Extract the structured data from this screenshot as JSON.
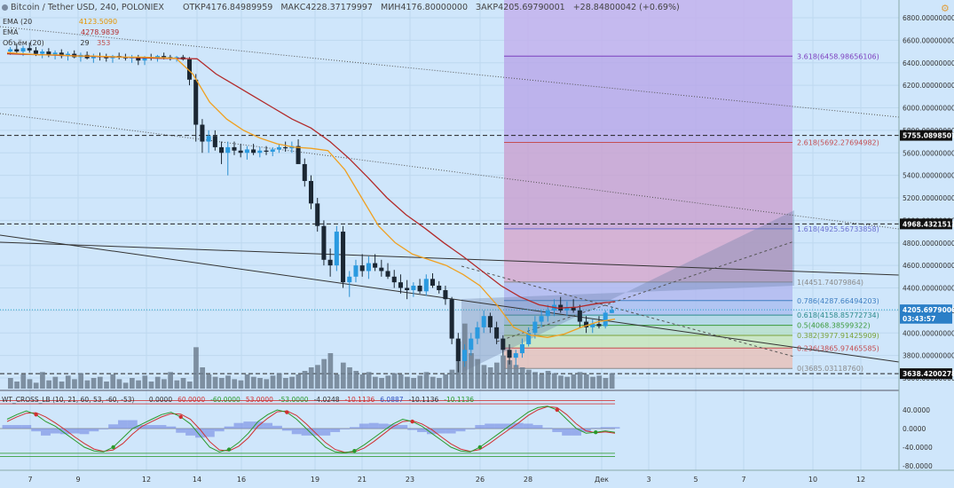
{
  "header": {
    "title": "Bitcoin / Tether USD, 240, POLONIEX",
    "open_label": "ОТКР",
    "open_value": "4176.84989959",
    "high_label": "МАКС",
    "high_value": "4228.37179997",
    "low_label": "МИН",
    "low_value": "4176.80000000",
    "close_label": "ЗАКР",
    "close_value": "4205.69790001",
    "change": "+28.84800042 (+0.69%)"
  },
  "legend": {
    "ema1_label": "EMA (20",
    "ema1_value": "4123.5090",
    "ema2_label": "EMA",
    "ema2_value": "4278.9839",
    "vol_label": "Объём (20)",
    "vol_v1": "29",
    "vol_v2": "353"
  },
  "fib_levels": [
    {
      "label": "3.618(6458.98656106)",
      "price": 6458.98656106,
      "color": "#7d3fbf"
    },
    {
      "label": "2.618(5692.27694982)",
      "price": 5692.27694982,
      "color": "#c44e52"
    },
    {
      "label": "1.618(4925.56733858)",
      "price": 4925.56733858,
      "color": "#6a6fd0"
    },
    {
      "label": "1(4451.74079864)",
      "price": 4451.74079864,
      "color": "#8a8a8a"
    },
    {
      "label": "0.786(4287.66494203)",
      "price": 4287.66494203,
      "color": "#3f7fc2"
    },
    {
      "label": "0.618(4158.85772734)",
      "price": 4158.85772734,
      "color": "#2e8b8b"
    },
    {
      "label": "0.5(4068.38599322)",
      "price": 4068.38599322,
      "color": "#3b9a3b"
    },
    {
      "label": "0.382(3977.91425909)",
      "price": 3977.91425909,
      "color": "#7aa23a"
    },
    {
      "label": "0.236(3865.97465585)",
      "price": 3865.97465585,
      "color": "#c44e52"
    },
    {
      "label": "0(3685.03118760)",
      "price": 3685.0311876,
      "color": "#8a8a8a"
    }
  ],
  "price_axis": {
    "ticks": [
      "6800.00000000",
      "6600.00000000",
      "6400.00000000",
      "6200.00000000",
      "6000.00000000",
      "5800.00000000",
      "5600.00000000",
      "5400.00000000",
      "5200.00000000",
      "5000.00000000",
      "4800.00000000",
      "4600.00000000",
      "4400.00000000",
      "4200.00000000",
      "4000.00000000",
      "3800.00000000",
      "3600.00000000"
    ],
    "markers": [
      {
        "label": "5755.08985078",
        "price": 5755.08985078
      },
      {
        "label": "4968.43215110",
        "price": 4968.4321511
      },
      {
        "label": "4205.69790001",
        "price": 4205.69790001
      },
      {
        "label": "03:43:57",
        "price": 4130
      },
      {
        "label": "3638.42002782",
        "price": 3638.42002782
      }
    ]
  },
  "indicator": {
    "title": "WT_CROSS_LB (10, 21, 60, 53, -60, -53)",
    "values": [
      {
        "text": "0.0000",
        "color": "#333333"
      },
      {
        "text": "60.0000",
        "color": "#d03030"
      },
      {
        "text": "-60.0000",
        "color": "#2a9a2a"
      },
      {
        "text": "53.0000",
        "color": "#d03030"
      },
      {
        "text": "-53.0000",
        "color": "#2a9a2a"
      },
      {
        "text": "-4.0248",
        "color": "#333333"
      },
      {
        "text": "-10.1136",
        "color": "#d03030"
      },
      {
        "text": "6.0887",
        "color": "#3050c0"
      },
      {
        "text": "-10.1136",
        "color": "#333333"
      },
      {
        "text": "-10.1136",
        "color": "#2a9a2a"
      }
    ],
    "ticks": [
      "40.0000",
      "0.0000",
      "-40.0000",
      "-80.0000"
    ]
  },
  "time_axis": {
    "ticks": [
      "7",
      "9",
      "12",
      "14",
      "16",
      "19",
      "21",
      "23",
      "26",
      "28",
      "Дек",
      "3",
      "5",
      "7",
      "10",
      "12"
    ]
  },
  "chart_data": {
    "type": "candlestick",
    "title": "Bitcoin / Tether USD, 240, POLONIEX",
    "ylim": [
      3600,
      6900
    ],
    "candles_ohlc": [
      [
        6500,
        6540,
        6470,
        6520
      ],
      [
        6520,
        6560,
        6480,
        6500
      ],
      [
        6500,
        6550,
        6460,
        6530
      ],
      [
        6530,
        6580,
        6490,
        6510
      ],
      [
        6510,
        6540,
        6460,
        6480
      ],
      [
        6480,
        6520,
        6440,
        6500
      ],
      [
        6500,
        6530,
        6450,
        6470
      ],
      [
        6470,
        6510,
        6430,
        6490
      ],
      [
        6490,
        6520,
        6440,
        6460
      ],
      [
        6460,
        6500,
        6420,
        6480
      ],
      [
        6480,
        6510,
        6440,
        6450
      ],
      [
        6450,
        6490,
        6410,
        6470
      ],
      [
        6470,
        6500,
        6430,
        6440
      ],
      [
        6440,
        6480,
        6400,
        6460
      ],
      [
        6460,
        6490,
        6420,
        6450
      ],
      [
        6450,
        6480,
        6410,
        6440
      ],
      [
        6440,
        6470,
        6400,
        6460
      ],
      [
        6460,
        6490,
        6430,
        6450
      ],
      [
        6450,
        6480,
        6420,
        6440
      ],
      [
        6440,
        6470,
        6400,
        6450
      ],
      [
        6450,
        6470,
        6380,
        6420
      ],
      [
        6420,
        6460,
        6380,
        6450
      ],
      [
        6450,
        6480,
        6420,
        6440
      ],
      [
        6440,
        6470,
        6410,
        6460
      ],
      [
        6460,
        6490,
        6430,
        6450
      ],
      [
        6450,
        6470,
        6420,
        6440
      ],
      [
        6440,
        6460,
        6410,
        6450
      ],
      [
        6450,
        6470,
        6420,
        6430
      ],
      [
        6430,
        6450,
        6200,
        6250
      ],
      [
        6250,
        6300,
        5700,
        5850
      ],
      [
        5850,
        5900,
        5600,
        5700
      ],
      [
        5700,
        5800,
        5600,
        5750
      ],
      [
        5750,
        5800,
        5620,
        5650
      ],
      [
        5650,
        5700,
        5500,
        5600
      ],
      [
        5600,
        5700,
        5400,
        5650
      ],
      [
        5650,
        5700,
        5580,
        5620
      ],
      [
        5620,
        5680,
        5560,
        5600
      ],
      [
        5600,
        5660,
        5540,
        5630
      ],
      [
        5630,
        5680,
        5580,
        5600
      ],
      [
        5600,
        5650,
        5560,
        5620
      ],
      [
        5620,
        5660,
        5580,
        5610
      ],
      [
        5610,
        5650,
        5570,
        5630
      ],
      [
        5630,
        5680,
        5600,
        5650
      ],
      [
        5650,
        5700,
        5610,
        5640
      ],
      [
        5640,
        5700,
        5600,
        5660
      ],
      [
        5660,
        5720,
        5600,
        5500
      ],
      [
        5500,
        5550,
        5300,
        5350
      ],
      [
        5350,
        5400,
        5100,
        5150
      ],
      [
        5150,
        5200,
        4900,
        4950
      ],
      [
        4950,
        5000,
        4600,
        4650
      ],
      [
        4650,
        4750,
        4500,
        4600
      ],
      [
        4600,
        4950,
        4550,
        4900
      ],
      [
        4900,
        4950,
        4400,
        4450
      ],
      [
        4450,
        4550,
        4320,
        4500
      ],
      [
        4500,
        4650,
        4450,
        4600
      ],
      [
        4600,
        4700,
        4500,
        4550
      ],
      [
        4550,
        4680,
        4480,
        4620
      ],
      [
        4620,
        4700,
        4550,
        4580
      ],
      [
        4580,
        4650,
        4500,
        4550
      ],
      [
        4550,
        4620,
        4480,
        4500
      ],
      [
        4500,
        4560,
        4400,
        4450
      ],
      [
        4450,
        4520,
        4350,
        4400
      ],
      [
        4400,
        4470,
        4300,
        4380
      ],
      [
        4380,
        4450,
        4320,
        4420
      ],
      [
        4420,
        4480,
        4350,
        4370
      ],
      [
        4370,
        4520,
        4330,
        4480
      ],
      [
        4480,
        4530,
        4400,
        4420
      ],
      [
        4420,
        4460,
        4350,
        4380
      ],
      [
        4380,
        4420,
        4250,
        4300
      ],
      [
        4300,
        4320,
        3900,
        3950
      ],
      [
        3950,
        4000,
        3650,
        3750
      ],
      [
        3750,
        3900,
        3700,
        3850
      ],
      [
        3850,
        4000,
        3800,
        3950
      ],
      [
        3950,
        4100,
        3900,
        4050
      ],
      [
        4050,
        4200,
        4000,
        4150
      ],
      [
        4150,
        4180,
        4000,
        4050
      ],
      [
        4050,
        4100,
        3900,
        3950
      ],
      [
        3950,
        3980,
        3800,
        3850
      ],
      [
        3850,
        3900,
        3720,
        3780
      ],
      [
        3780,
        3850,
        3700,
        3820
      ],
      [
        3820,
        3950,
        3780,
        3900
      ],
      [
        3900,
        4050,
        3880,
        4000
      ],
      [
        4000,
        4150,
        3950,
        4100
      ],
      [
        4100,
        4200,
        4050,
        4150
      ],
      [
        4150,
        4250,
        4100,
        4200
      ],
      [
        4200,
        4300,
        4150,
        4250
      ],
      [
        4250,
        4320,
        4180,
        4200
      ],
      [
        4200,
        4280,
        4150,
        4230
      ],
      [
        4230,
        4300,
        4180,
        4200
      ],
      [
        4200,
        4250,
        4050,
        4100
      ],
      [
        4100,
        4150,
        4000,
        4050
      ],
      [
        4050,
        4120,
        4000,
        4080
      ],
      [
        4080,
        4150,
        4040,
        4060
      ],
      [
        4060,
        4200,
        4040,
        4180
      ],
      [
        4177,
        4228,
        4176,
        4205
      ]
    ],
    "ema_fast": [
      6490,
      6480,
      6470,
      6470,
      6460,
      6460,
      6455,
      6450,
      6450,
      6445,
      6440,
      6300,
      6050,
      5900,
      5800,
      5730,
      5680,
      5650,
      5640,
      5620,
      5450,
      5200,
      4950,
      4800,
      4700,
      4650,
      4600,
      4520,
      4420,
      4250,
      4050,
      3980,
      3960,
      3990,
      4050,
      4100,
      4123
    ],
    "ema_slow": [
      6480,
      6475,
      6470,
      6465,
      6460,
      6455,
      6450,
      6445,
      6440,
      6438,
      6435,
      6300,
      6200,
      6100,
      6000,
      5900,
      5820,
      5700,
      5550,
      5380,
      5200,
      5050,
      4930,
      4800,
      4680,
      4550,
      4420,
      4320,
      4250,
      4220,
      4230,
      4260,
      4279
    ],
    "volume": [
      9,
      6,
      12,
      8,
      5,
      14,
      7,
      10,
      6,
      11,
      8,
      13,
      7,
      9,
      10,
      6,
      12,
      8,
      5,
      9,
      7,
      11,
      6,
      10,
      8,
      14,
      7,
      9,
      6,
      35,
      18,
      12,
      10,
      9,
      11,
      8,
      7,
      12,
      10,
      9,
      8,
      11,
      13,
      9,
      10,
      12,
      15,
      18,
      20,
      25,
      30,
      12,
      22,
      18,
      15,
      12,
      14,
      10,
      9,
      11,
      13,
      12,
      10,
      9,
      11,
      14,
      10,
      9,
      12,
      16,
      40,
      55,
      30,
      25,
      20,
      18,
      22,
      28,
      24,
      20,
      18,
      16,
      14,
      12,
      15,
      13,
      11,
      10,
      12,
      14,
      12,
      10,
      11,
      9,
      13
    ],
    "wt1": [
      20,
      30,
      38,
      30,
      15,
      5,
      -10,
      -25,
      -40,
      -48,
      -50,
      -40,
      -20,
      0,
      10,
      20,
      30,
      35,
      25,
      10,
      -15,
      -40,
      -50,
      -45,
      -30,
      -10,
      15,
      30,
      40,
      35,
      20,
      0,
      -20,
      -40,
      -50,
      -52,
      -48,
      -35,
      -20,
      -5,
      10,
      20,
      15,
      5,
      -10,
      -25,
      -40,
      -48,
      -50,
      -40,
      -25,
      -10,
      5,
      20,
      35,
      45,
      48,
      40,
      20,
      0,
      -10,
      -8,
      -5,
      -8
    ],
    "wt2": [
      15,
      25,
      33,
      34,
      25,
      12,
      -2,
      -18,
      -32,
      -44,
      -49,
      -46,
      -32,
      -12,
      5,
      15,
      25,
      32,
      31,
      20,
      -2,
      -28,
      -46,
      -48,
      -38,
      -20,
      5,
      22,
      36,
      38,
      28,
      10,
      -10,
      -30,
      -45,
      -51,
      -50,
      -42,
      -28,
      -12,
      4,
      15,
      17,
      10,
      -2,
      -18,
      -33,
      -44,
      -49,
      -45,
      -32,
      -17,
      -2,
      12,
      28,
      40,
      47,
      45,
      30,
      10,
      -5,
      -9,
      -7,
      -10
    ]
  }
}
